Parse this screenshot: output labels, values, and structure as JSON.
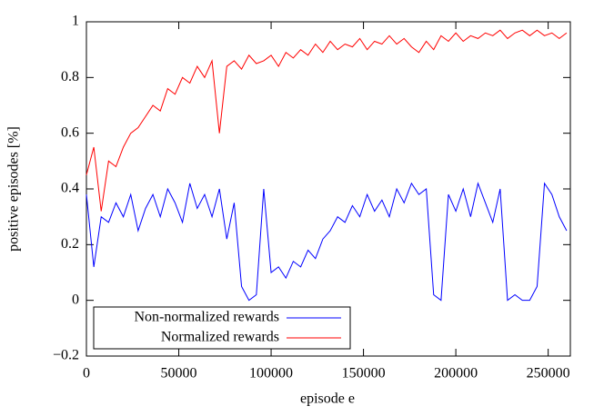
{
  "chart_data": {
    "type": "line",
    "xlabel": "episode e",
    "ylabel": "positive episodes [%]",
    "x": [
      0,
      4000,
      8000,
      12000,
      16000,
      20000,
      24000,
      28000,
      32000,
      36000,
      40000,
      44000,
      48000,
      52000,
      56000,
      60000,
      64000,
      68000,
      72000,
      76000,
      80000,
      84000,
      88000,
      92000,
      96000,
      100000,
      104000,
      108000,
      112000,
      116000,
      120000,
      124000,
      128000,
      132000,
      136000,
      140000,
      144000,
      148000,
      152000,
      156000,
      160000,
      164000,
      168000,
      172000,
      176000,
      180000,
      184000,
      188000,
      192000,
      196000,
      200000,
      204000,
      208000,
      212000,
      216000,
      220000,
      224000,
      228000,
      232000,
      236000,
      240000,
      244000,
      248000,
      252000,
      256000,
      260000
    ],
    "series": [
      {
        "name": "Non-normalized rewards",
        "color": "#0000ff",
        "values": [
          0.38,
          0.12,
          0.3,
          0.28,
          0.35,
          0.3,
          0.38,
          0.25,
          0.33,
          0.38,
          0.3,
          0.4,
          0.35,
          0.28,
          0.42,
          0.33,
          0.38,
          0.3,
          0.4,
          0.22,
          0.35,
          0.05,
          0.0,
          0.02,
          0.4,
          0.1,
          0.12,
          0.08,
          0.14,
          0.12,
          0.18,
          0.15,
          0.22,
          0.25,
          0.3,
          0.28,
          0.34,
          0.3,
          0.38,
          0.32,
          0.36,
          0.3,
          0.4,
          0.35,
          0.42,
          0.38,
          0.4,
          0.02,
          0.0,
          0.38,
          0.32,
          0.4,
          0.3,
          0.42,
          0.35,
          0.28,
          0.4,
          0.0,
          0.02,
          0.0,
          0.0,
          0.05,
          0.42,
          0.38,
          0.3,
          0.25
        ]
      },
      {
        "name": "Normalized rewards",
        "color": "#ff0000",
        "values": [
          0.45,
          0.55,
          0.32,
          0.5,
          0.48,
          0.55,
          0.6,
          0.62,
          0.66,
          0.7,
          0.68,
          0.76,
          0.74,
          0.8,
          0.78,
          0.84,
          0.8,
          0.86,
          0.6,
          0.84,
          0.86,
          0.83,
          0.88,
          0.85,
          0.86,
          0.88,
          0.84,
          0.89,
          0.87,
          0.9,
          0.88,
          0.92,
          0.89,
          0.93,
          0.9,
          0.92,
          0.91,
          0.94,
          0.9,
          0.93,
          0.92,
          0.95,
          0.92,
          0.94,
          0.91,
          0.89,
          0.93,
          0.9,
          0.95,
          0.93,
          0.96,
          0.93,
          0.95,
          0.94,
          0.96,
          0.95,
          0.97,
          0.94,
          0.96,
          0.97,
          0.95,
          0.97,
          0.95,
          0.96,
          0.94,
          0.96
        ]
      }
    ],
    "xlim": [
      0,
      262000
    ],
    "ylim": [
      -0.2,
      1
    ],
    "xticks": [
      0,
      50000,
      100000,
      150000,
      200000,
      250000
    ],
    "yticks": [
      {
        "value": -0.2,
        "label": "−0.2"
      },
      0,
      0.2,
      0.4,
      0.6,
      0.8,
      1
    ],
    "legend": "lower left"
  }
}
